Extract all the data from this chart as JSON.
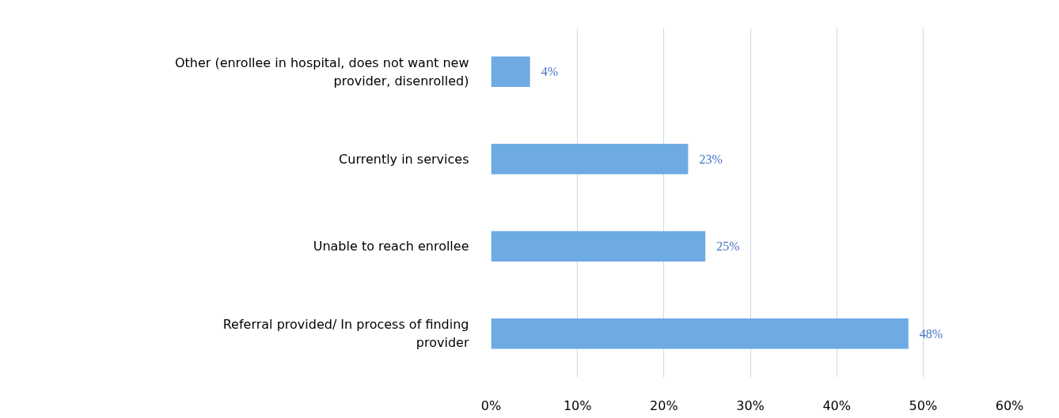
{
  "chart_data": {
    "type": "bar",
    "orientation": "horizontal",
    "categories": [
      "Other (enrollee in hospital, does not want new provider, disenrolled)",
      "Currently in services",
      "Unable to reach enrollee",
      "Referral provided/ In process of finding provider"
    ],
    "values": [
      4.5,
      22.8,
      24.8,
      48.3
    ],
    "value_labels": [
      "4%",
      "23%",
      "25%",
      "48%"
    ],
    "color": "#6eaae3",
    "xlim": [
      0,
      60
    ],
    "xticks": [
      {
        "value": 0,
        "label": "0%"
      },
      {
        "value": 10,
        "label": "10%"
      },
      {
        "value": 20,
        "label": "20%"
      },
      {
        "value": 30,
        "label": "30%"
      },
      {
        "value": 40,
        "label": "40%"
      },
      {
        "value": 50,
        "label": "50%"
      },
      {
        "value": 60,
        "label": "60%"
      }
    ],
    "grid": "x"
  }
}
